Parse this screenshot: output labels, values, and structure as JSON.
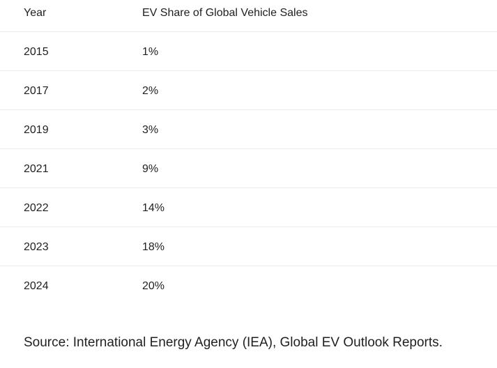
{
  "table": {
    "headers": {
      "year": "Year",
      "share": "EV Share of Global Vehicle Sales"
    },
    "rows": [
      {
        "year": "2015",
        "share": "1%"
      },
      {
        "year": "2017",
        "share": "2%"
      },
      {
        "year": "2019",
        "share": "3%"
      },
      {
        "year": "2021",
        "share": "9%"
      },
      {
        "year": "2022",
        "share": "14%"
      },
      {
        "year": "2023",
        "share": "18%"
      },
      {
        "year": "2024",
        "share": "20%"
      }
    ]
  },
  "source": "Source: International Energy Agency (IEA), Global EV Outlook Reports."
}
